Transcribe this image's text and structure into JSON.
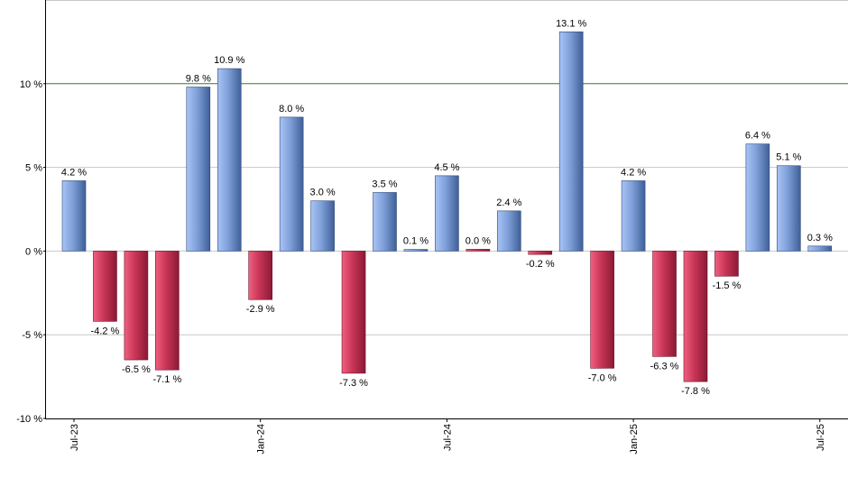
{
  "chart_data": {
    "type": "bar",
    "categories": [
      "2023-07",
      "2023-08",
      "2023-09",
      "2023-10",
      "2023-11",
      "2023-12",
      "2024-01",
      "2024-02",
      "2024-03",
      "2024-04",
      "2024-05",
      "2024-06",
      "2024-07",
      "2024-08",
      "2024-09",
      "2024-10",
      "2024-11",
      "2024-12",
      "2025-01",
      "2025-02",
      "2025-03",
      "2025-04",
      "2025-05",
      "2025-06",
      "2025-07"
    ],
    "values": [
      4.2,
      -4.2,
      -6.5,
      -7.1,
      9.8,
      10.9,
      -2.9,
      8.0,
      3.0,
      -7.3,
      3.5,
      0.1,
      4.5,
      0.0,
      2.4,
      -0.2,
      13.1,
      -7.0,
      4.2,
      -6.3,
      -7.8,
      -1.5,
      6.4,
      5.1,
      0.3
    ],
    "data_labels": [
      "4.2 %",
      "-4.2 %",
      "-6.5 %",
      "-7.1 %",
      "9.8 %",
      "10.9 %",
      "-2.9 %",
      "8.0 %",
      "3.0 %",
      "-7.3 %",
      "3.5 %",
      "0.1 %",
      "4.5 %",
      "0.0 %",
      "2.4 %",
      "-0.2 %",
      "13.1 %",
      "-7.0 %",
      "4.2 %",
      "-6.3 %",
      "-7.8 %",
      "-1.5 %",
      "6.4 %",
      "5.1 %",
      "0.3 %"
    ],
    "ylim": [
      -10,
      15
    ],
    "y_ticks": [
      {
        "value": 10,
        "label": "10 %"
      },
      {
        "value": 5,
        "label": "5 %"
      },
      {
        "value": 0,
        "label": "0 %"
      },
      {
        "value": -5,
        "label": "-5 %"
      },
      {
        "value": -10,
        "label": "-10 %"
      }
    ],
    "x_ticks": [
      {
        "index": 0,
        "label": "Jul-23"
      },
      {
        "index": 6,
        "label": "Jan-24"
      },
      {
        "index": 12,
        "label": "Jul-24"
      },
      {
        "index": 18,
        "label": "Jan-25"
      },
      {
        "index": 24,
        "label": "Jul-25"
      }
    ],
    "reference_line": 10,
    "grid": true,
    "colors": {
      "positive_light": "#a9c4f5",
      "positive_dark": "#3f5f99",
      "negative_light": "#f06080",
      "negative_dark": "#8a1a35",
      "reference_line": "#2e7d32",
      "grid": "#c8c8c8"
    }
  }
}
